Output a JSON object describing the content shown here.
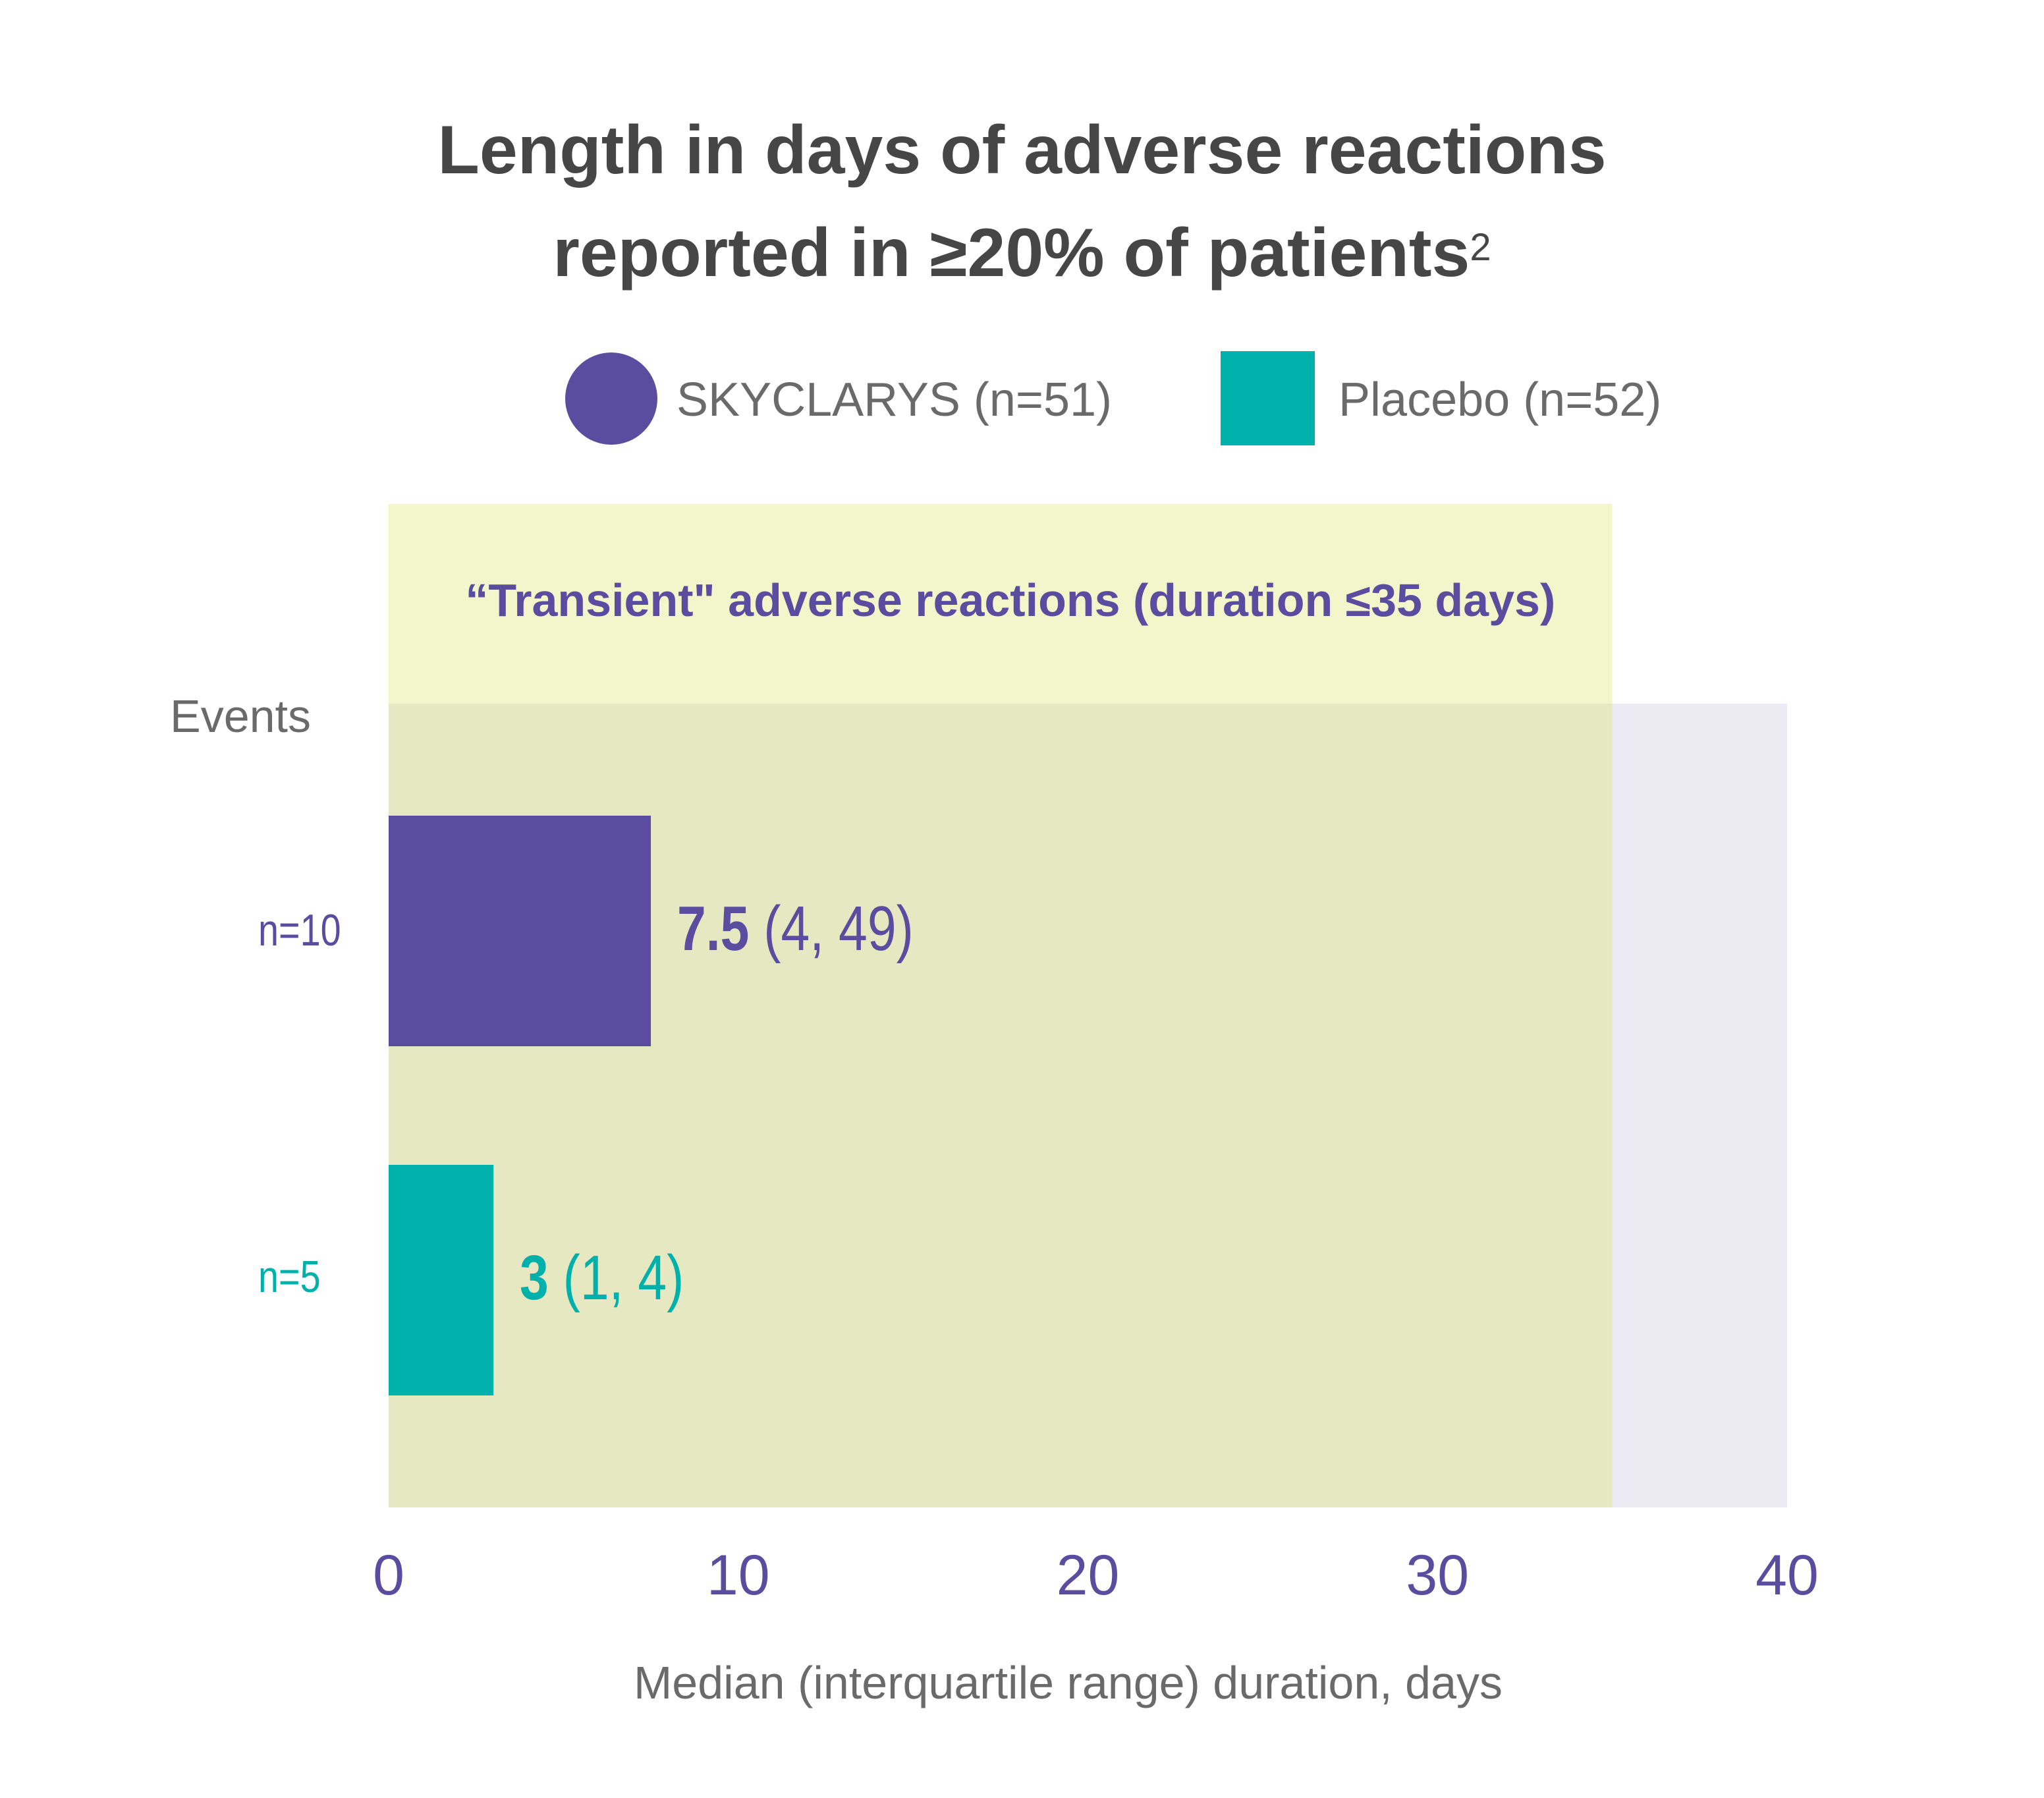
{
  "title": {
    "line1": "Length in days of adverse reactions",
    "line2": "reported in ≥20% of patients",
    "superscript": "2"
  },
  "legend": [
    {
      "label": "SKYCLARYS (n=51)",
      "color": "#5a4d9f",
      "shape": "circle"
    },
    {
      "label": "Placebo (n=52)",
      "color": "#00b0aa",
      "shape": "square"
    }
  ],
  "events_label": "Events",
  "colors": {
    "skyclarys": "#5a4d9f",
    "placebo": "#00b0aa",
    "transient_band_header": "#f3f6cb",
    "transient_band_body": "#e6e8c1",
    "background_band": "#eceaf3",
    "axis_text": "#5a4d9f",
    "text_gray": "#6a6a6a"
  },
  "chart_data": {
    "type": "bar",
    "orientation": "horizontal",
    "title": "Length in days of adverse reactions reported in ≥20% of patients",
    "xlabel": "Median (interquartile range) duration, days",
    "ylabel": "Events",
    "xlim": [
      0,
      40
    ],
    "xticks": [
      0,
      10,
      20,
      30,
      40
    ],
    "xtick_labels": [
      "0",
      "10",
      "20",
      "30",
      "40"
    ],
    "grid": false,
    "legend_position": "top-center",
    "annotation": {
      "text": "“Transient\" adverse reactions (duration ≤35 days)",
      "x_range": [
        0,
        35
      ]
    },
    "series": [
      {
        "name": "SKYCLARYS (n=51)",
        "category": "n=10",
        "median": 7.5,
        "iqr": [
          4,
          49
        ],
        "median_label": "7.5",
        "iqr_label": "(4, 49)",
        "color": "#5a4d9f"
      },
      {
        "name": "Placebo (n=52)",
        "category": "n=5",
        "median": 3,
        "iqr": [
          1,
          4
        ],
        "median_label": "3",
        "iqr_label": "(1, 4)",
        "color": "#00b0aa"
      }
    ]
  }
}
